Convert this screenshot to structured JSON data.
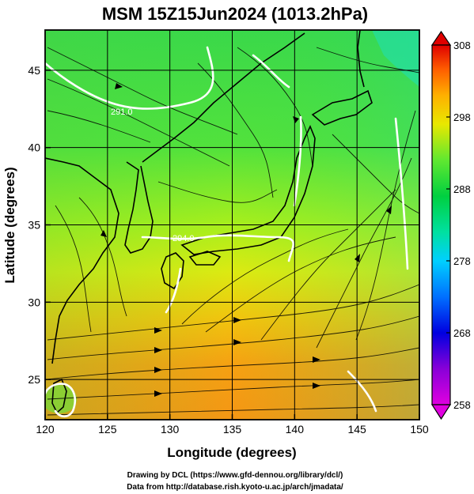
{
  "title": "MSM 15Z15Jun2024 (1013.2hPa)",
  "map": {
    "lon_range": [
      120,
      150
    ],
    "lat_range": [
      22.4,
      47.6
    ],
    "lon_ticks": [
      120,
      125,
      130,
      135,
      140,
      145,
      150
    ],
    "lat_ticks": [
      25,
      30,
      35,
      40,
      45
    ],
    "lon_tick_labels": [
      "120",
      "125",
      "130",
      "135",
      "140",
      "145",
      "150"
    ],
    "lat_tick_labels": [
      "25",
      "30",
      "35",
      "40",
      "45"
    ],
    "xlabel": "Longitude (degrees)",
    "ylabel": "Latitude (degrees)",
    "contour_labels": [
      "291.0",
      "294.0"
    ],
    "field": "shaded temperature with streamlines and white contours"
  },
  "colorbar": {
    "range": [
      258,
      308
    ],
    "ticks": [
      258,
      268,
      278,
      288,
      298,
      308
    ],
    "tick_labels": [
      "258",
      "268",
      "278",
      "288",
      "298",
      "308"
    ],
    "colors": [
      "#e000e0",
      "#7000d8",
      "#0000e0",
      "#0060ff",
      "#00c8ff",
      "#00e0a0",
      "#00d040",
      "#40e040",
      "#a0f000",
      "#e8e800",
      "#ffb000",
      "#ff8000",
      "#ff4000",
      "#e00000"
    ]
  },
  "credits": {
    "line1": "Drawing by DCL (https://www.gfd-dennou.org/library/dcl/)",
    "line2": "Data from http://database.rish.kyoto-u.ac.jp/arch/jmadata/"
  }
}
